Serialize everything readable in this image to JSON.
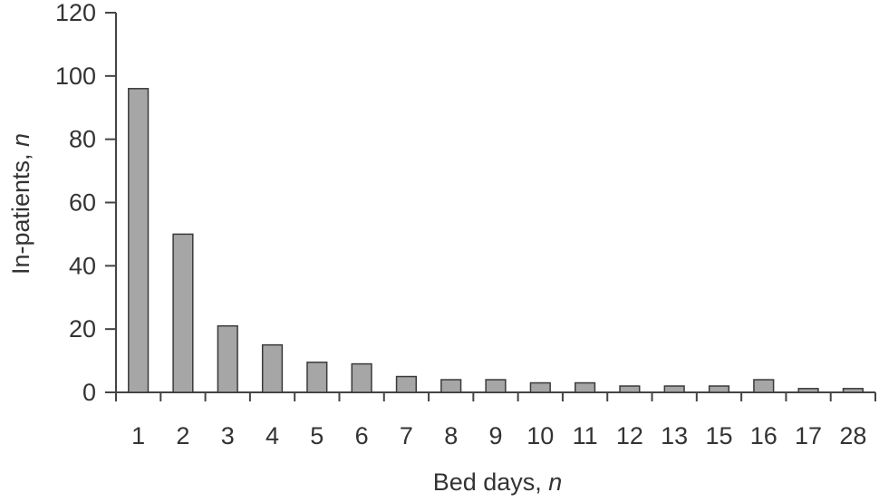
{
  "chart_data": {
    "type": "bar",
    "categories": [
      "1",
      "2",
      "3",
      "4",
      "5",
      "6",
      "7",
      "8",
      "9",
      "10",
      "11",
      "12",
      "13",
      "15",
      "16",
      "17",
      "28"
    ],
    "values": [
      96,
      50,
      21,
      15,
      9.5,
      9,
      5,
      4,
      4,
      3,
      3,
      2,
      2,
      2,
      4,
      1.2,
      1.2
    ],
    "xlabel": "Bed days, n",
    "ylabel": "In-patients, n",
    "ylim": [
      0,
      120
    ],
    "yticks": [
      "0",
      "20",
      "40",
      "60",
      "80",
      "100",
      "120"
    ],
    "grid": false,
    "bar_color": "#a6a6a6",
    "bar_edge_color": "#3a3a3a"
  }
}
